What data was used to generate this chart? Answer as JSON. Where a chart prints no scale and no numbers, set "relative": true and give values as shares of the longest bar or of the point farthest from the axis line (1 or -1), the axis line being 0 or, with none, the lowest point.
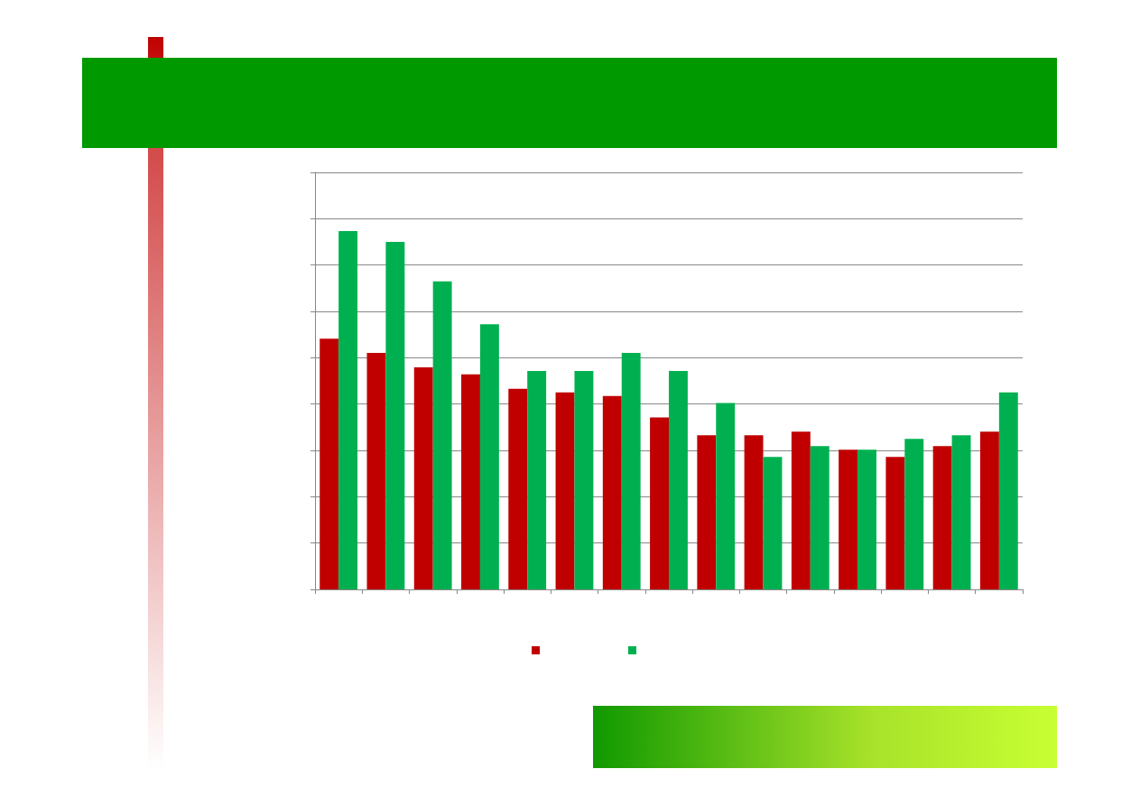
{
  "chart_data": {
    "type": "bar",
    "relative": true,
    "categories": [
      null,
      null,
      null,
      null,
      null,
      null,
      null,
      null,
      null,
      null,
      null,
      null,
      null,
      null,
      null
    ],
    "series": [
      {
        "color": "#c00000",
        "values": [
          0.7,
          0.66,
          0.62,
          0.6,
          0.56,
          0.55,
          0.54,
          0.48,
          0.43,
          0.43,
          0.44,
          0.39,
          0.37,
          0.4,
          0.44
        ]
      },
      {
        "color": "#00b050",
        "values": [
          1,
          0.97,
          0.86,
          0.74,
          0.61,
          0.61,
          0.66,
          0.61,
          0.52,
          0.37,
          0.4,
          0.39,
          0.42,
          0.43,
          0.55
        ]
      }
    ],
    "grid": "y"
  }
}
